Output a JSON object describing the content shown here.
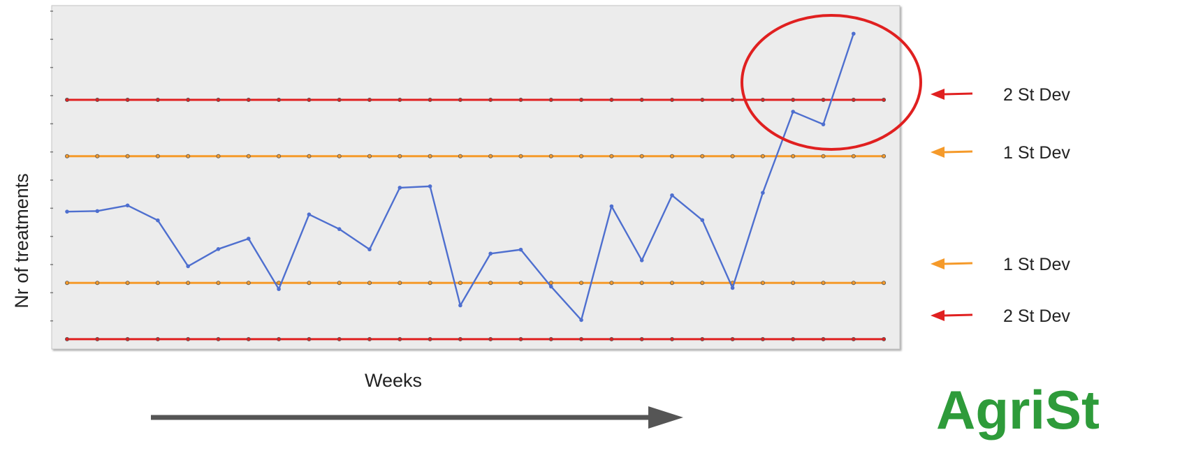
{
  "chart_data": {
    "type": "line",
    "title": "",
    "xlabel": "Weeks",
    "ylabel": "Nr of treatments",
    "x": [
      1,
      2,
      3,
      4,
      5,
      6,
      7,
      8,
      9,
      10,
      11,
      12,
      13,
      14,
      15,
      16,
      17,
      18,
      19,
      20,
      21,
      22,
      23,
      24,
      25,
      26,
      27,
      28
    ],
    "ylim": [
      0,
      12
    ],
    "grid": false,
    "series": [
      {
        "name": "",
        "role": "data",
        "color": "#4e6fcf",
        "values": [
          4.88,
          4.9,
          5.1,
          4.57,
          2.94,
          3.55,
          3.92,
          2.13,
          4.78,
          4.26,
          3.54,
          5.73,
          5.78,
          1.55,
          3.39,
          3.53,
          2.22,
          1.03,
          5.07,
          3.15,
          5.46,
          4.58,
          2.17,
          5.55,
          8.43,
          7.98,
          11.2,
          null
        ]
      },
      {
        "name": "",
        "role": "limit",
        "color": "#e02020",
        "values_constant": 8.85
      },
      {
        "name": "",
        "role": "limit",
        "color": "#f59a2a",
        "values_constant": 6.85
      },
      {
        "name": "",
        "role": "limit",
        "color": "#f59a2a",
        "values_constant": 2.35
      },
      {
        "name": "",
        "role": "limit",
        "color": "#e02020",
        "values_constant": 0.35
      }
    ],
    "annotations": [
      {
        "label": "2 St Dev",
        "color": "#e02020",
        "level": 8.85
      },
      {
        "label": "1 St Dev",
        "color": "#f59a2a",
        "level": 6.85
      },
      {
        "label": "1 St Dev",
        "color": "#f59a2a",
        "level": 2.35
      },
      {
        "label": "2 St Dev",
        "color": "#e02020",
        "level": 0.35
      }
    ],
    "highlight_circle_color": "#e02020",
    "time_arrow_color": "#555555"
  },
  "logo": {
    "text": "AgriSt",
    "color": "#2e9b3a"
  }
}
